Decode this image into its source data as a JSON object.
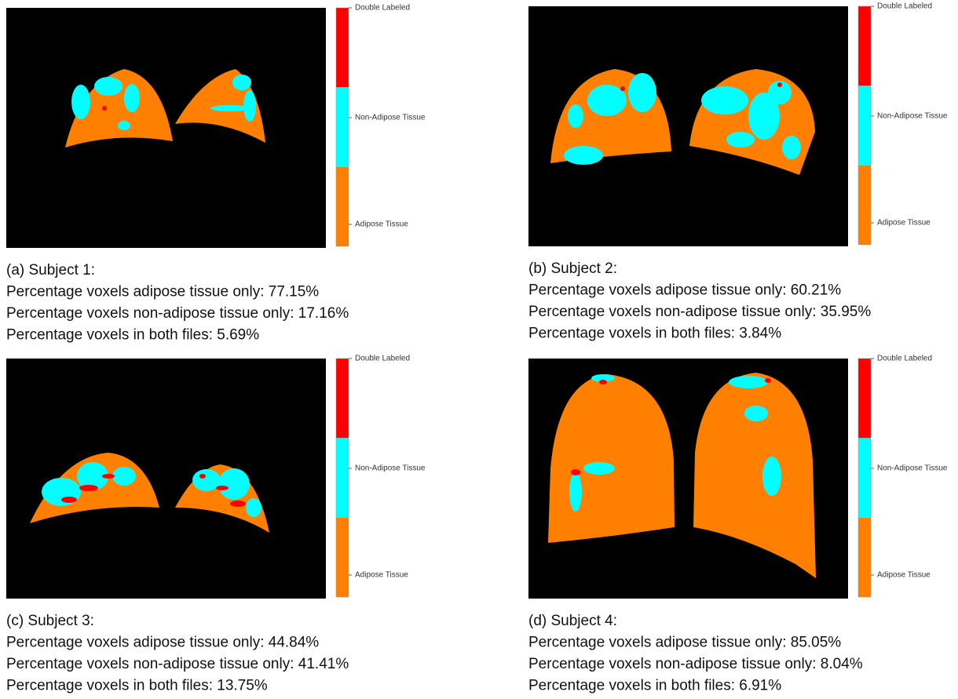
{
  "panels": [
    {
      "legend": [
        "Double Labeled",
        "Non-Adipose Tissue",
        "Adipose Tissue"
      ],
      "caption": [
        "(a) Subject 1:",
        "Percentage voxels adipose tissue only: 77.15%",
        "Percentage voxels non-adipose tissue only: 17.16%",
        "Percentage voxels in both files: 5.69%"
      ]
    },
    {
      "legend": [
        "Double Labeled",
        "Non-Adipose Tissue",
        "Adipose Tissue"
      ],
      "caption": [
        "(b) Subject 2:",
        "Percentage voxels adipose tissue only: 60.21%",
        "Percentage voxels non-adipose tissue only: 35.95%",
        "Percentage voxels in both files: 3.84%"
      ]
    },
    {
      "legend": [
        "Double Labeled",
        "Non-Adipose Tissue",
        "Adipose Tissue"
      ],
      "caption": [
        "(c) Subject 3:",
        "Percentage voxels adipose tissue only: 44.84%",
        "Percentage voxels non-adipose tissue only: 41.41%",
        "Percentage voxels in both files: 13.75%"
      ]
    },
    {
      "legend": [
        "Double Labeled",
        "Non-Adipose Tissue",
        "Adipose Tissue"
      ],
      "caption": [
        "(d) Subject 4:",
        "Percentage voxels adipose tissue only: 85.05%",
        "Percentage voxels non-adipose tissue only: 8.04%",
        "Percentage voxels in both files: 6.91%"
      ]
    }
  ]
}
